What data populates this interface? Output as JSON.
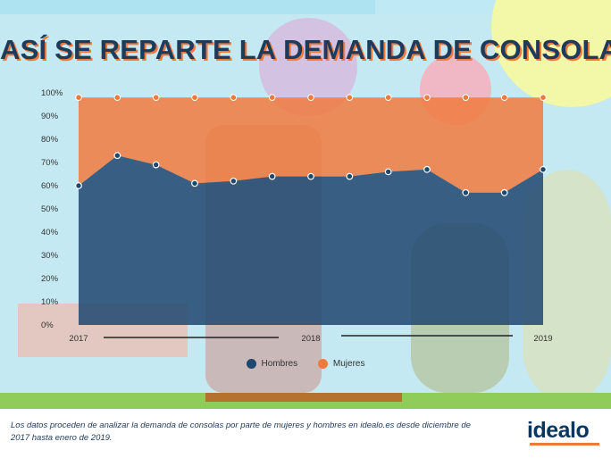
{
  "title": "ASÍ SE REPARTE LA DEMANDA DE CONSOLAS",
  "footnote": "Los datos proceden de analizar la demanda de consolas por parte de mujeres y hombres en idealo.es desde diciembre de 2017 hasta enero de 2019.",
  "logo": "idealo",
  "colors": {
    "hombres": "#1f4770",
    "mujeres": "#f07a3e",
    "title": "#1f3b5c"
  },
  "chart_data": {
    "type": "area",
    "x_labels": [
      "2017",
      "2018",
      "2019"
    ],
    "y_ticks": [
      "100%",
      "90%",
      "80%",
      "70%",
      "60%",
      "50%",
      "40%",
      "30%",
      "20%",
      "10%",
      "0%"
    ],
    "ylim": [
      0,
      100
    ],
    "legend_position": "bottom",
    "series": [
      {
        "name": "Hombres",
        "values": [
          60,
          73,
          69,
          61,
          62,
          64,
          64,
          64,
          66,
          67,
          57,
          57,
          67
        ]
      },
      {
        "name": "Mujeres",
        "values": [
          98,
          98,
          98,
          98,
          98,
          98,
          98,
          98,
          98,
          98,
          98,
          98,
          98
        ]
      }
    ]
  }
}
